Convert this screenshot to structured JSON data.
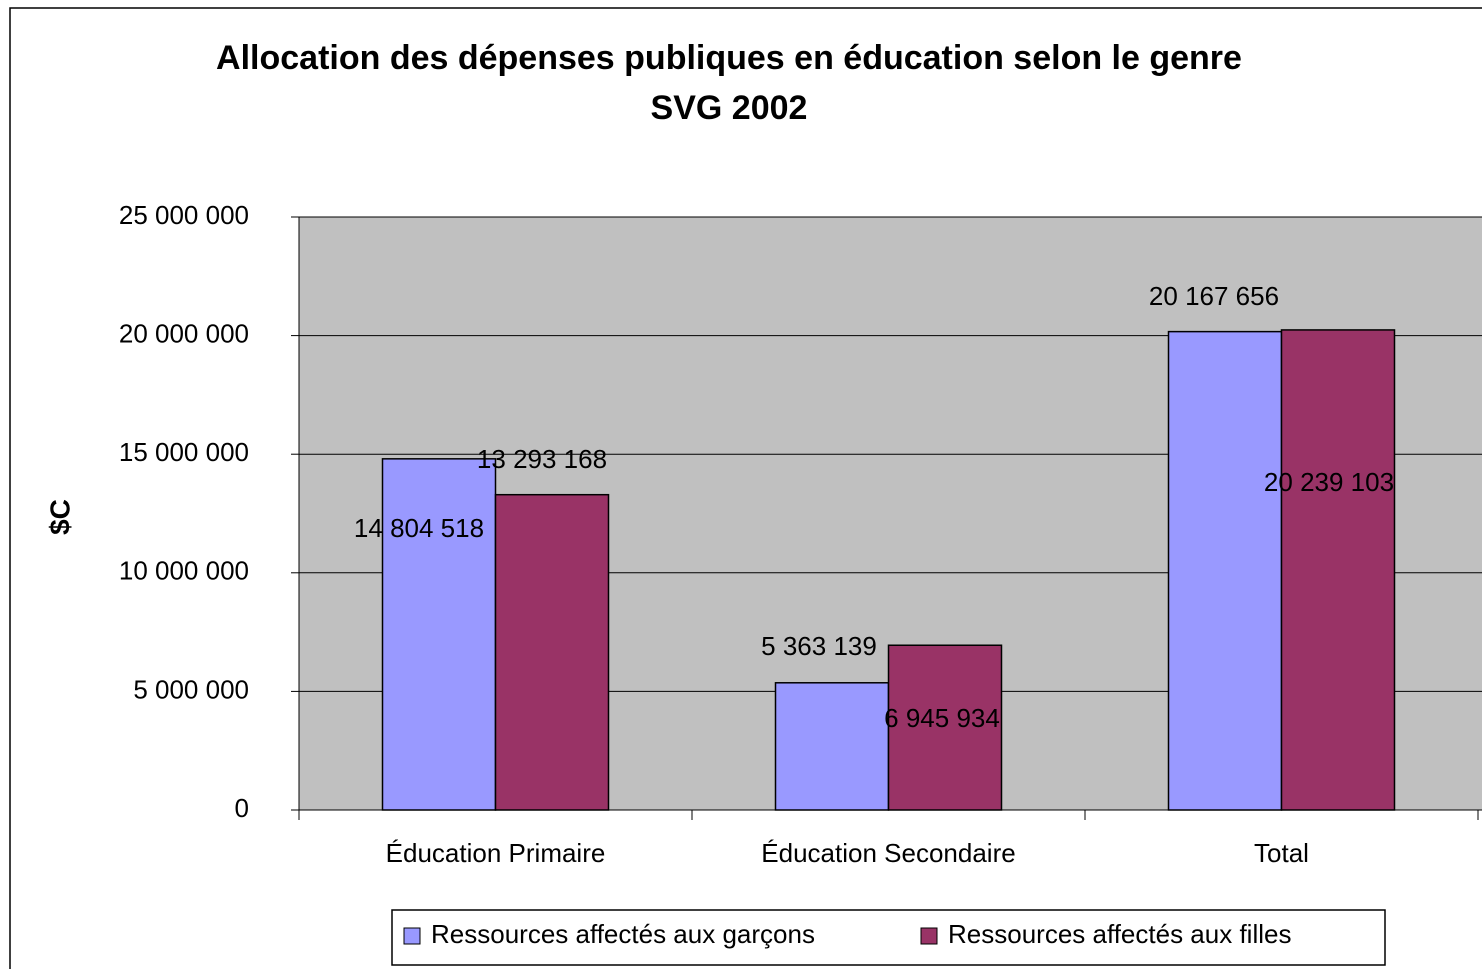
{
  "chart_data": {
    "type": "bar",
    "title": "Allocation des dépenses publiques en éducation selon le genre",
    "subtitle": "SVG 2002",
    "y_label": "$C",
    "categories": [
      "Éducation Primaire",
      "Éducation Secondaire",
      "Total"
    ],
    "series": [
      {
        "name": "Ressources affectés aux garçons",
        "color": "#9999ff",
        "values": [
          14804518,
          5363139,
          20167656
        ],
        "value_labels": [
          "14 804 518",
          "5 363 139",
          "20 167 656"
        ]
      },
      {
        "name": "Ressources affectés aux filles",
        "color": "#993366",
        "values": [
          13293168,
          6945934,
          20239103
        ],
        "value_labels": [
          "13 293 168",
          "6 945 934",
          "20 239 103"
        ]
      }
    ],
    "ylim": [
      0,
      25000000
    ],
    "yticks": [
      {
        "value": 0,
        "label": "0"
      },
      {
        "value": 5000000,
        "label": "5 000 000"
      },
      {
        "value": 10000000,
        "label": "10 000 000"
      },
      {
        "value": 15000000,
        "label": "15 000 000"
      },
      {
        "value": 20000000,
        "label": "20 000 000"
      },
      {
        "value": 25000000,
        "label": "25 000 000"
      }
    ],
    "grid": true,
    "plot_background": "#c0c0c0",
    "legend": "bottom"
  }
}
